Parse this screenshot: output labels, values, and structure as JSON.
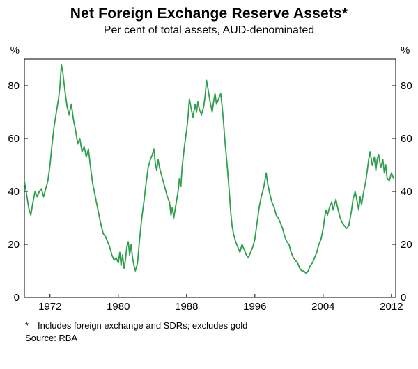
{
  "header": {
    "title": "Net Foreign Exchange Reserve Assets*",
    "subtitle": "Per cent of total assets, AUD-denominated"
  },
  "footer": {
    "footnote_marker": "*",
    "footnote_text": "Includes foreign exchange and SDRs; excludes gold",
    "source": "Source: RBA"
  },
  "chart_data": {
    "type": "line",
    "title": "Net Foreign Exchange Reserve Assets*",
    "subtitle": "Per cent of total assets, AUD-denominated",
    "y_unit": "%",
    "xlabel": "",
    "ylabel": "Per cent of total assets",
    "xlim": [
      1969,
      2012.5
    ],
    "ylim": [
      0,
      90
    ],
    "yticks": [
      0,
      20,
      40,
      60,
      80
    ],
    "xticks": [
      1972,
      1980,
      1988,
      1996,
      2004,
      2012
    ],
    "grid": false,
    "legend": "none",
    "line_color": "#2ea04c",
    "axis_color": "#000000",
    "series": [
      {
        "name": "Net foreign exchange reserve assets (% of total assets, AUD-denominated)",
        "points": [
          [
            1969.0,
            44
          ],
          [
            1969.25,
            39
          ],
          [
            1969.5,
            34
          ],
          [
            1969.75,
            31
          ],
          [
            1970.0,
            36
          ],
          [
            1970.25,
            40
          ],
          [
            1970.5,
            38
          ],
          [
            1970.75,
            40
          ],
          [
            1971.0,
            41
          ],
          [
            1971.25,
            38
          ],
          [
            1971.5,
            41
          ],
          [
            1971.75,
            44
          ],
          [
            1972.0,
            50
          ],
          [
            1972.25,
            58
          ],
          [
            1972.5,
            65
          ],
          [
            1972.75,
            70
          ],
          [
            1973.0,
            75
          ],
          [
            1973.17,
            80
          ],
          [
            1973.33,
            88
          ],
          [
            1973.5,
            85
          ],
          [
            1973.75,
            78
          ],
          [
            1974.0,
            72
          ],
          [
            1974.25,
            69
          ],
          [
            1974.5,
            73
          ],
          [
            1974.75,
            67
          ],
          [
            1975.0,
            63
          ],
          [
            1975.25,
            58
          ],
          [
            1975.5,
            60
          ],
          [
            1975.75,
            55
          ],
          [
            1976.0,
            57
          ],
          [
            1976.25,
            53
          ],
          [
            1976.5,
            56
          ],
          [
            1976.75,
            49
          ],
          [
            1977.0,
            43
          ],
          [
            1977.25,
            39
          ],
          [
            1977.5,
            35
          ],
          [
            1977.75,
            31
          ],
          [
            1978.0,
            27
          ],
          [
            1978.25,
            24
          ],
          [
            1978.5,
            23
          ],
          [
            1978.75,
            21
          ],
          [
            1979.0,
            19
          ],
          [
            1979.25,
            16
          ],
          [
            1979.5,
            14
          ],
          [
            1979.75,
            15
          ],
          [
            1980.0,
            13
          ],
          [
            1980.17,
            17
          ],
          [
            1980.33,
            12
          ],
          [
            1980.5,
            16
          ],
          [
            1980.67,
            11
          ],
          [
            1980.83,
            14
          ],
          [
            1981.0,
            19
          ],
          [
            1981.17,
            21
          ],
          [
            1981.33,
            16
          ],
          [
            1981.5,
            20
          ],
          [
            1981.67,
            15
          ],
          [
            1981.83,
            12
          ],
          [
            1982.0,
            10
          ],
          [
            1982.25,
            13
          ],
          [
            1982.5,
            22
          ],
          [
            1982.75,
            30
          ],
          [
            1983.0,
            36
          ],
          [
            1983.25,
            43
          ],
          [
            1983.5,
            49
          ],
          [
            1983.75,
            52
          ],
          [
            1984.0,
            54
          ],
          [
            1984.17,
            56
          ],
          [
            1984.33,
            51
          ],
          [
            1984.5,
            48
          ],
          [
            1984.67,
            52
          ],
          [
            1984.83,
            49
          ],
          [
            1985.0,
            47
          ],
          [
            1985.25,
            44
          ],
          [
            1985.5,
            41
          ],
          [
            1985.75,
            38
          ],
          [
            1986.0,
            36
          ],
          [
            1986.17,
            31
          ],
          [
            1986.33,
            34
          ],
          [
            1986.5,
            30
          ],
          [
            1986.75,
            35
          ],
          [
            1987.0,
            40
          ],
          [
            1987.17,
            45
          ],
          [
            1987.33,
            42
          ],
          [
            1987.5,
            50
          ],
          [
            1987.75,
            57
          ],
          [
            1988.0,
            63
          ],
          [
            1988.17,
            68
          ],
          [
            1988.33,
            75
          ],
          [
            1988.5,
            72
          ],
          [
            1988.75,
            68
          ],
          [
            1989.0,
            73
          ],
          [
            1989.17,
            70
          ],
          [
            1989.33,
            74
          ],
          [
            1989.5,
            71
          ],
          [
            1989.75,
            69
          ],
          [
            1990.0,
            72
          ],
          [
            1990.17,
            76
          ],
          [
            1990.33,
            82
          ],
          [
            1990.5,
            79
          ],
          [
            1990.75,
            74
          ],
          [
            1991.0,
            70
          ],
          [
            1991.17,
            74
          ],
          [
            1991.33,
            77
          ],
          [
            1991.5,
            73
          ],
          [
            1991.75,
            75
          ],
          [
            1992.0,
            77
          ],
          [
            1992.17,
            72
          ],
          [
            1992.33,
            66
          ],
          [
            1992.5,
            59
          ],
          [
            1992.75,
            50
          ],
          [
            1993.0,
            40
          ],
          [
            1993.17,
            32
          ],
          [
            1993.33,
            27
          ],
          [
            1993.5,
            24
          ],
          [
            1993.75,
            21
          ],
          [
            1994.0,
            19
          ],
          [
            1994.25,
            17
          ],
          [
            1994.5,
            20
          ],
          [
            1994.75,
            18
          ],
          [
            1995.0,
            16
          ],
          [
            1995.25,
            15
          ],
          [
            1995.5,
            17
          ],
          [
            1995.75,
            19
          ],
          [
            1996.0,
            22
          ],
          [
            1996.25,
            28
          ],
          [
            1996.5,
            34
          ],
          [
            1996.75,
            38
          ],
          [
            1997.0,
            41
          ],
          [
            1997.17,
            44
          ],
          [
            1997.33,
            47
          ],
          [
            1997.5,
            43
          ],
          [
            1997.75,
            39
          ],
          [
            1998.0,
            36
          ],
          [
            1998.25,
            34
          ],
          [
            1998.5,
            31
          ],
          [
            1998.75,
            30
          ],
          [
            1999.0,
            28
          ],
          [
            1999.25,
            26
          ],
          [
            1999.5,
            23
          ],
          [
            1999.75,
            21
          ],
          [
            2000.0,
            20
          ],
          [
            2000.25,
            17
          ],
          [
            2000.5,
            15
          ],
          [
            2000.75,
            14
          ],
          [
            2001.0,
            13
          ],
          [
            2001.25,
            11
          ],
          [
            2001.5,
            10
          ],
          [
            2001.75,
            10
          ],
          [
            2002.0,
            9
          ],
          [
            2002.25,
            10
          ],
          [
            2002.5,
            12
          ],
          [
            2002.75,
            13
          ],
          [
            2003.0,
            15
          ],
          [
            2003.25,
            17
          ],
          [
            2003.5,
            20
          ],
          [
            2003.75,
            22
          ],
          [
            2004.0,
            26
          ],
          [
            2004.17,
            30
          ],
          [
            2004.33,
            33
          ],
          [
            2004.5,
            31
          ],
          [
            2004.75,
            34
          ],
          [
            2005.0,
            36
          ],
          [
            2005.17,
            33
          ],
          [
            2005.33,
            35
          ],
          [
            2005.5,
            37
          ],
          [
            2005.75,
            33
          ],
          [
            2006.0,
            30
          ],
          [
            2006.25,
            28
          ],
          [
            2006.5,
            27
          ],
          [
            2006.75,
            26
          ],
          [
            2007.0,
            27
          ],
          [
            2007.17,
            30
          ],
          [
            2007.33,
            33
          ],
          [
            2007.5,
            37
          ],
          [
            2007.75,
            40
          ],
          [
            2008.0,
            36
          ],
          [
            2008.17,
            33
          ],
          [
            2008.33,
            38
          ],
          [
            2008.5,
            35
          ],
          [
            2008.75,
            40
          ],
          [
            2009.0,
            44
          ],
          [
            2009.17,
            48
          ],
          [
            2009.33,
            52
          ],
          [
            2009.5,
            55
          ],
          [
            2009.75,
            50
          ],
          [
            2010.0,
            53
          ],
          [
            2010.17,
            48
          ],
          [
            2010.33,
            52
          ],
          [
            2010.5,
            54
          ],
          [
            2010.75,
            49
          ],
          [
            2011.0,
            52
          ],
          [
            2011.17,
            47
          ],
          [
            2011.33,
            50
          ],
          [
            2011.5,
            45
          ],
          [
            2011.75,
            44
          ],
          [
            2012.0,
            47
          ],
          [
            2012.25,
            45
          ]
        ]
      }
    ]
  }
}
